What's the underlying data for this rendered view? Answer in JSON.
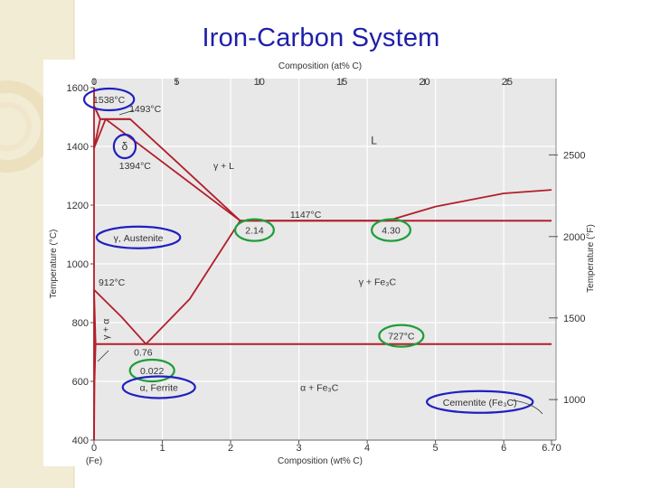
{
  "slide": {
    "title": "Iron-Carbon System"
  },
  "colors": {
    "slide_background": "#ffffff",
    "left_band": "#f3ecd5",
    "title": "#1f1fa8",
    "figure_background": "#e8e8e8",
    "grid": "#ffffff",
    "phase_boundary": "#b21e2a",
    "blue_annotation": "#2020c0",
    "green_annotation": "#1e9e3a",
    "text": "#333333"
  },
  "chart_data": {
    "type": "phase-diagram",
    "top_axis": {
      "label": "Composition (at% C)",
      "ticks": [
        {
          "label": "0",
          "at_pct": 0
        },
        {
          "label": "5",
          "at_pct": 5
        },
        {
          "label": "10",
          "at_pct": 10
        },
        {
          "label": "15",
          "at_pct": 15
        },
        {
          "label": "20",
          "at_pct": 20
        },
        {
          "label": "25",
          "at_pct": 25
        }
      ]
    },
    "bottom_axis": {
      "label": "Composition (wt% C)",
      "sublabel": "(Fe)",
      "xlim": [
        0,
        6.7
      ],
      "ticks": [
        {
          "label": "0",
          "value": 0
        },
        {
          "label": "1",
          "value": 1
        },
        {
          "label": "2",
          "value": 2
        },
        {
          "label": "3",
          "value": 3
        },
        {
          "label": "4",
          "value": 4
        },
        {
          "label": "5",
          "value": 5
        },
        {
          "label": "6",
          "value": 6
        },
        {
          "label": "6.70",
          "value": 6.7
        }
      ]
    },
    "left_axis": {
      "label": "Temperature (°C)",
      "ylim": [
        400,
        1600
      ],
      "ticks": [
        {
          "label": "400",
          "value": 400
        },
        {
          "label": "600",
          "value": 600
        },
        {
          "label": "800",
          "value": 800
        },
        {
          "label": "1000",
          "value": 1000
        },
        {
          "label": "1200",
          "value": 1200
        },
        {
          "label": "1400",
          "value": 1400
        },
        {
          "label": "1600",
          "value": 1600
        }
      ]
    },
    "right_axis": {
      "label": "Temperature (°F)",
      "ticks": [
        {
          "label": "1000",
          "value_c": 538
        },
        {
          "label": "1500",
          "value_c": 816
        },
        {
          "label": "2000",
          "value_c": 1093
        },
        {
          "label": "2500",
          "value_c": 1371
        }
      ]
    },
    "grid": true,
    "boundaries": [
      {
        "name": "liquidus-delta",
        "points": [
          [
            0,
            1538
          ],
          [
            0.09,
            1493
          ]
        ]
      },
      {
        "name": "liquidus-gamma",
        "points": [
          [
            0.09,
            1493
          ],
          [
            0.53,
            1493
          ],
          [
            1.2,
            1350
          ],
          [
            2.14,
            1147
          ],
          [
            4.3,
            1147
          ]
        ]
      },
      {
        "name": "liquidus-cementite",
        "points": [
          [
            4.3,
            1147
          ],
          [
            5.0,
            1195
          ],
          [
            6.0,
            1240
          ],
          [
            6.7,
            1252
          ]
        ]
      },
      {
        "name": "peritectic-line",
        "points": [
          [
            0.09,
            1493
          ],
          [
            0.53,
            1493
          ]
        ]
      },
      {
        "name": "delta-solidus",
        "points": [
          [
            0,
            1538
          ],
          [
            0.09,
            1493
          ]
        ]
      },
      {
        "name": "delta-gamma-upper",
        "points": [
          [
            0.09,
            1493
          ],
          [
            0,
            1394
          ]
        ]
      },
      {
        "name": "delta-gamma-lower",
        "points": [
          [
            0.17,
            1493
          ],
          [
            0,
            1394
          ]
        ]
      },
      {
        "name": "gamma-solidus",
        "points": [
          [
            0.17,
            1493
          ],
          [
            2.14,
            1147
          ]
        ]
      },
      {
        "name": "eutectic-isotherm",
        "points": [
          [
            2.14,
            1147
          ],
          [
            6.7,
            1147
          ]
        ]
      },
      {
        "name": "acm-line",
        "points": [
          [
            0.76,
            727
          ],
          [
            1.4,
            880
          ],
          [
            2.14,
            1147
          ]
        ]
      },
      {
        "name": "a3-line",
        "points": [
          [
            0,
            912
          ],
          [
            0.4,
            820
          ],
          [
            0.76,
            727
          ]
        ]
      },
      {
        "name": "gamma-alpha-lower",
        "points": [
          [
            0,
            912
          ],
          [
            0.022,
            727
          ]
        ]
      },
      {
        "name": "eutectoid-isotherm",
        "points": [
          [
            0.022,
            727
          ],
          [
            6.7,
            727
          ]
        ]
      },
      {
        "name": "alpha-solvus",
        "points": [
          [
            0.022,
            727
          ],
          [
            0.006,
            600
          ],
          [
            0,
            400
          ]
        ]
      },
      {
        "name": "fe-axis",
        "points": [
          [
            0,
            400
          ],
          [
            0,
            1600
          ]
        ]
      }
    ],
    "annotations": [
      {
        "text": "1538°C",
        "x": 0.22,
        "y": 1560,
        "circle": "blue"
      },
      {
        "text": "1493°C",
        "x": 0.75,
        "y": 1530,
        "circle": null
      },
      {
        "text": "δ",
        "x": 0.45,
        "y": 1400,
        "circle": "blue"
      },
      {
        "text": "L",
        "x": 4.1,
        "y": 1420,
        "circle": null
      },
      {
        "text": "1394°C",
        "x": 0.6,
        "y": 1335,
        "circle": null
      },
      {
        "text": "γ + L",
        "x": 1.9,
        "y": 1335,
        "circle": null
      },
      {
        "text": "1147°C",
        "x": 3.1,
        "y": 1170,
        "circle": null
      },
      {
        "text": "2.14",
        "x": 2.35,
        "y": 1115,
        "circle": "green"
      },
      {
        "text": "4.30",
        "x": 4.35,
        "y": 1115,
        "circle": "green"
      },
      {
        "text": "γ, Austenite",
        "x": 0.65,
        "y": 1090,
        "circle": "blue"
      },
      {
        "text": "912°C",
        "x": 0.26,
        "y": 938,
        "circle": null
      },
      {
        "text": "γ + Fe₃C",
        "x": 4.15,
        "y": 940,
        "circle": null
      },
      {
        "text": "727°C",
        "x": 4.5,
        "y": 755,
        "circle": "green"
      },
      {
        "text": "γ + α",
        "x": 0.22,
        "y": 790,
        "circle": null
      },
      {
        "text": "0.76",
        "x": 0.72,
        "y": 700,
        "circle": null
      },
      {
        "text": "0.022",
        "x": 0.85,
        "y": 637,
        "circle": "green"
      },
      {
        "text": "α, Ferrite",
        "x": 0.95,
        "y": 580,
        "circle": "blue"
      },
      {
        "text": "α + Fe₃C",
        "x": 3.3,
        "y": 580,
        "circle": null
      },
      {
        "text": "Cementite (Fe₃C)",
        "x": 5.65,
        "y": 530,
        "circle": "blue"
      }
    ]
  }
}
